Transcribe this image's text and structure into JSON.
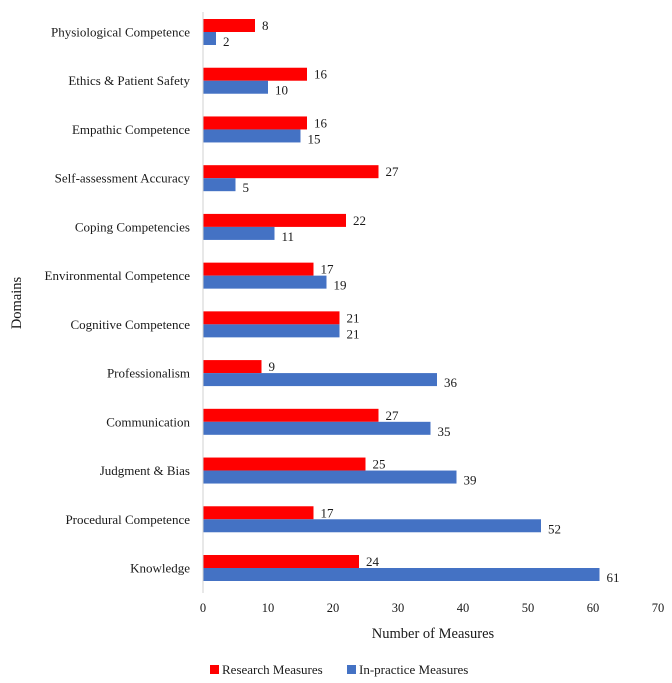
{
  "chart_data": {
    "type": "bar",
    "orientation": "horizontal",
    "title": "",
    "xlabel": "Number of Measures",
    "ylabel": "Domains",
    "xlim": [
      0,
      70
    ],
    "x_ticks": [
      0,
      10,
      20,
      30,
      40,
      50,
      60,
      70
    ],
    "grid": false,
    "legend_position": "bottom",
    "categories": [
      "Physiological Competence",
      "Ethics & Patient Safety",
      "Empathic Competence",
      "Self-assessment Accuracy",
      "Coping Competencies",
      "Environmental Competence",
      "Cognitive Competence",
      "Professionalism",
      "Communication",
      "Judgment & Bias",
      "Procedural Competence",
      "Knowledge"
    ],
    "series": [
      {
        "name": "Research Measures",
        "color": "#ff0000",
        "values": [
          8,
          16,
          16,
          27,
          22,
          17,
          21,
          9,
          27,
          25,
          17,
          24
        ]
      },
      {
        "name": "In-practice Measures",
        "color": "#4472c4",
        "values": [
          2,
          10,
          15,
          5,
          11,
          19,
          21,
          36,
          35,
          39,
          52,
          61
        ]
      }
    ]
  }
}
